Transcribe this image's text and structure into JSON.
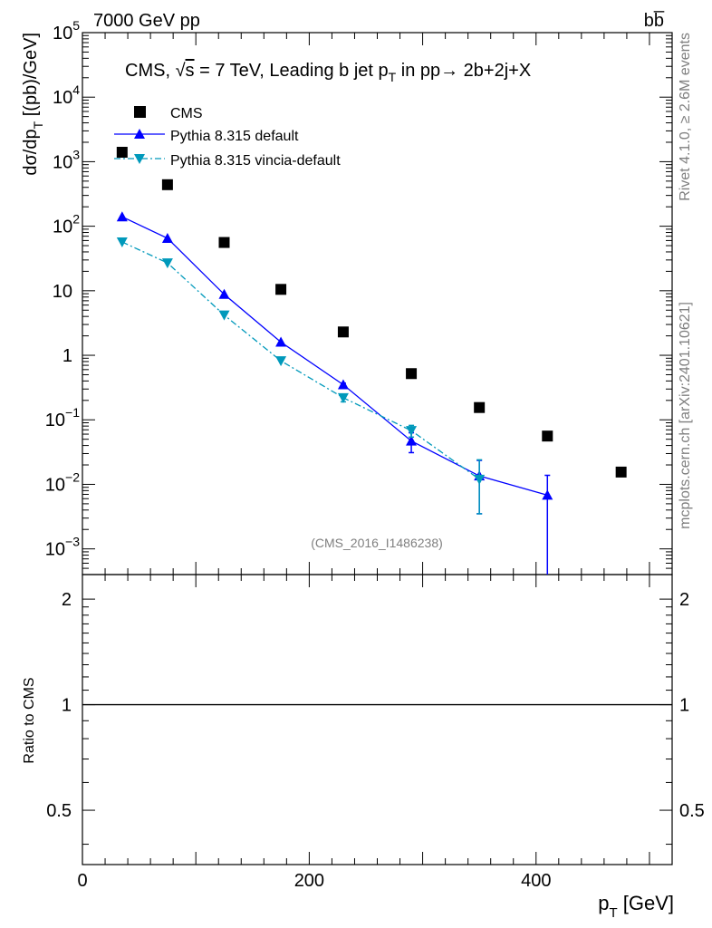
{
  "header": {
    "energy_label": "7000 GeV pp",
    "process_label": "bb̅"
  },
  "side": {
    "rivet_label": "Rivet 4.1.0, ≥ 2.6M events",
    "mcplots_label": "mcplots.cern.ch [arXiv:2401.10621]"
  },
  "watermark": "(CMS_2016_I1486238)",
  "chart_data": [
    {
      "type": "scatter",
      "title": "CMS, √s = 7 TeV, Leading b jet p_T in pp→ 2b+2j+X",
      "title_parts": {
        "pre": "CMS, ",
        "sqrt": "√",
        "s": "s",
        "mid": " = 7 TeV, Leading b jet p",
        "sub": "T",
        "post": " in pp→  2b+2j+X"
      },
      "ylabel": "dσ/dp_T [(pb)/GeV]",
      "ylabel_parts": {
        "main": "dσ/dp",
        "sub": "T",
        "units": "  [(pb)/GeV]"
      },
      "xlim": [
        0,
        520
      ],
      "ylim": [
        0.0004,
        100000
      ],
      "yscale": "log",
      "ytick_labels": [
        {
          "value": 100000,
          "mant": "10",
          "exp": "5"
        },
        {
          "value": 10000,
          "mant": "10",
          "exp": "4"
        },
        {
          "value": 1000,
          "mant": "10",
          "exp": "3"
        },
        {
          "value": 100,
          "mant": "10",
          "exp": "2"
        },
        {
          "value": 10,
          "mant": "10",
          "exp": ""
        },
        {
          "value": 1,
          "mant": "1",
          "exp": ""
        },
        {
          "value": 0.1,
          "mant": "10",
          "exp": "−1"
        },
        {
          "value": 0.01,
          "mant": "10",
          "exp": "−2"
        },
        {
          "value": 0.001,
          "mant": "10",
          "exp": "−3"
        }
      ],
      "legend": {
        "position": "top-left",
        "entries": [
          "CMS",
          "Pythia 8.315 default",
          "Pythia 8.315 vincia-default"
        ]
      },
      "series": [
        {
          "name": "CMS",
          "style": "marker-square",
          "color": "#000000",
          "x": [
            35,
            75,
            125,
            175,
            230,
            290,
            350,
            410,
            475
          ],
          "y": [
            1400,
            440,
            56,
            10.5,
            2.3,
            0.52,
            0.155,
            0.056,
            0.0155
          ]
        },
        {
          "name": "Pythia 8.315 default",
          "style": "line-triangle-up",
          "color": "#0000ff",
          "x": [
            35,
            75,
            125,
            175,
            230,
            290,
            350,
            410
          ],
          "y": [
            140,
            65,
            8.8,
            1.6,
            0.35,
            0.047,
            0.0135,
            0.0068
          ],
          "yerr_low": [
            0,
            0,
            0,
            0,
            0.02,
            0.016,
            0.01,
            0.0066
          ],
          "yerr_high": [
            0,
            0,
            0,
            0,
            0.02,
            0.016,
            0.01,
            0.007
          ]
        },
        {
          "name": "Pythia 8.315 vincia-default",
          "style": "dashdot-triangle-down",
          "color": "#0099bb",
          "x": [
            35,
            75,
            125,
            175,
            230,
            290,
            350
          ],
          "y": [
            57,
            27,
            4.2,
            0.82,
            0.22,
            0.068,
            0.012
          ],
          "yerr_low": [
            0,
            0,
            0,
            0,
            0.03,
            0.014,
            0.0085
          ],
          "yerr_high": [
            0,
            0,
            0,
            0,
            0.03,
            0.014,
            0.012
          ]
        }
      ]
    },
    {
      "type": "line",
      "ylabel": "Ratio to CMS",
      "xlabel": "p_T [GeV]",
      "xlabel_parts": {
        "main": "p",
        "sub": "T",
        "units": " [GeV]"
      },
      "xlim": [
        0,
        520
      ],
      "ylim": [
        0.35,
        2.35
      ],
      "yscale": "log",
      "ytick_labels": [
        {
          "value": 0.5,
          "label": "0.5"
        },
        {
          "value": 1,
          "label": "1"
        },
        {
          "value": 2,
          "label": "2"
        }
      ],
      "xtick_labels": [
        {
          "value": 0,
          "label": "0"
        },
        {
          "value": 200,
          "label": "200"
        },
        {
          "value": 400,
          "label": "400"
        }
      ],
      "reference_line": 1
    }
  ]
}
